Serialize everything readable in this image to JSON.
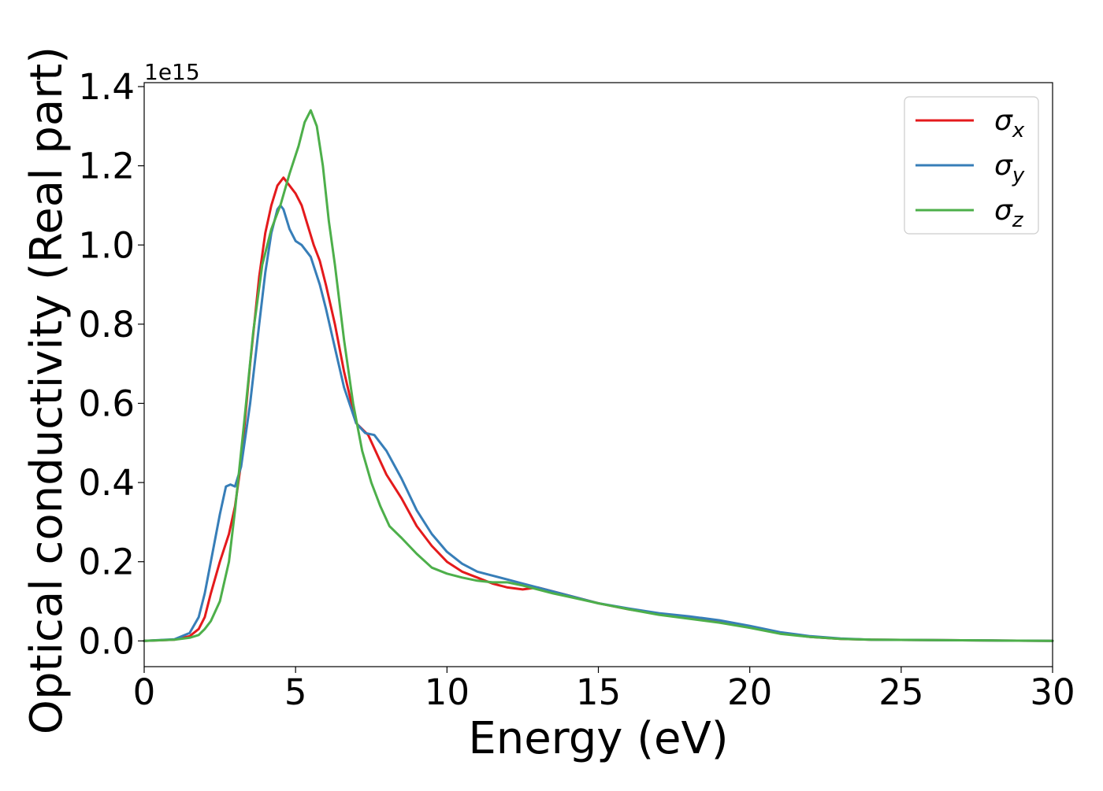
{
  "chart_data": {
    "type": "line",
    "xlabel": "Energy (eV)",
    "ylabel": "Optical conductivity (Real part)",
    "y_offset_label": "1e15",
    "xlim": [
      0,
      30
    ],
    "ylim": [
      -0.065,
      1.41
    ],
    "x_ticks": [
      0,
      5,
      10,
      15,
      20,
      25,
      30
    ],
    "x_tick_labels": [
      "0",
      "5",
      "10",
      "15",
      "20",
      "25",
      "30"
    ],
    "y_ticks": [
      0.0,
      0.2,
      0.4,
      0.6,
      0.8,
      1.0,
      1.2,
      1.4
    ],
    "y_tick_labels": [
      "0.0",
      "0.2",
      "0.4",
      "0.6",
      "0.8",
      "1.0",
      "1.2",
      "1.4"
    ],
    "grid": false,
    "legend_position": "top-right",
    "series": [
      {
        "name": "σ_x",
        "legend_base": "σ",
        "legend_sub": "x",
        "color": "#e41a1c",
        "x": [
          0,
          1,
          1.5,
          1.8,
          2.0,
          2.2,
          2.5,
          2.8,
          3.0,
          3.2,
          3.5,
          3.8,
          4.0,
          4.2,
          4.4,
          4.6,
          4.8,
          5.0,
          5.2,
          5.4,
          5.6,
          5.8,
          6.0,
          6.3,
          6.6,
          7.0,
          7.4,
          7.7,
          8.0,
          8.5,
          9.0,
          9.5,
          10.0,
          10.5,
          11.0,
          11.5,
          12.0,
          12.5,
          13.0,
          13.5,
          14.0,
          15.0,
          16.0,
          17.0,
          18.0,
          19.0,
          20.0,
          21.0,
          22.0,
          23.0,
          24.0,
          26.0,
          28.0,
          30.0
        ],
        "values": [
          0.0,
          0.003,
          0.012,
          0.03,
          0.06,
          0.12,
          0.2,
          0.27,
          0.34,
          0.45,
          0.7,
          0.92,
          1.03,
          1.1,
          1.15,
          1.17,
          1.15,
          1.13,
          1.1,
          1.05,
          1.0,
          0.96,
          0.9,
          0.8,
          0.68,
          0.55,
          0.52,
          0.47,
          0.42,
          0.36,
          0.29,
          0.24,
          0.2,
          0.175,
          0.16,
          0.145,
          0.135,
          0.13,
          0.135,
          0.125,
          0.115,
          0.095,
          0.08,
          0.068,
          0.058,
          0.048,
          0.035,
          0.02,
          0.01,
          0.005,
          0.003,
          0.002,
          0.001,
          0.0
        ]
      },
      {
        "name": "σ_y",
        "legend_base": "σ",
        "legend_sub": "y",
        "color": "#377eb8",
        "x": [
          0,
          1,
          1.5,
          1.8,
          2.0,
          2.2,
          2.5,
          2.7,
          2.85,
          3.0,
          3.2,
          3.5,
          3.8,
          4.0,
          4.2,
          4.4,
          4.5,
          4.6,
          4.8,
          5.0,
          5.2,
          5.5,
          5.8,
          6.0,
          6.3,
          6.6,
          7.0,
          7.3,
          7.6,
          8.0,
          8.5,
          9.0,
          9.5,
          10.0,
          10.5,
          11.0,
          11.5,
          12.0,
          12.5,
          13.0,
          13.5,
          14.0,
          15.0,
          16.0,
          17.0,
          18.0,
          19.0,
          20.0,
          21.0,
          22.0,
          23.0,
          24.0,
          26.0,
          28.0,
          30.0
        ],
        "values": [
          0.0,
          0.004,
          0.02,
          0.06,
          0.12,
          0.2,
          0.32,
          0.39,
          0.395,
          0.39,
          0.44,
          0.6,
          0.8,
          0.93,
          1.03,
          1.09,
          1.1,
          1.09,
          1.04,
          1.01,
          1.0,
          0.97,
          0.9,
          0.84,
          0.74,
          0.64,
          0.55,
          0.525,
          0.52,
          0.48,
          0.41,
          0.33,
          0.27,
          0.225,
          0.195,
          0.175,
          0.165,
          0.155,
          0.145,
          0.135,
          0.125,
          0.115,
          0.095,
          0.082,
          0.07,
          0.062,
          0.052,
          0.038,
          0.022,
          0.012,
          0.006,
          0.003,
          0.002,
          0.001,
          0.0
        ]
      },
      {
        "name": "σ_z",
        "legend_base": "σ",
        "legend_sub": "z",
        "color": "#4daf4a",
        "x": [
          0,
          1,
          1.5,
          1.8,
          2.0,
          2.2,
          2.5,
          2.8,
          3.0,
          3.3,
          3.6,
          3.9,
          4.2,
          4.5,
          4.8,
          5.1,
          5.3,
          5.5,
          5.7,
          5.9,
          6.1,
          6.3,
          6.6,
          6.9,
          7.2,
          7.5,
          7.8,
          8.1,
          8.5,
          9.0,
          9.5,
          10.0,
          10.5,
          11.0,
          11.5,
          12.0,
          12.5,
          13.0,
          13.5,
          14.0,
          15.0,
          16.0,
          17.0,
          18.0,
          19.0,
          20.0,
          21.0,
          22.0,
          23.0,
          24.0,
          26.0,
          28.0,
          30.0
        ],
        "values": [
          0.0,
          0.003,
          0.008,
          0.015,
          0.03,
          0.05,
          0.1,
          0.2,
          0.33,
          0.55,
          0.78,
          0.95,
          1.04,
          1.1,
          1.18,
          1.25,
          1.31,
          1.34,
          1.3,
          1.2,
          1.06,
          0.95,
          0.76,
          0.6,
          0.48,
          0.4,
          0.34,
          0.29,
          0.26,
          0.22,
          0.185,
          0.17,
          0.16,
          0.152,
          0.148,
          0.148,
          0.14,
          0.13,
          0.12,
          0.112,
          0.095,
          0.08,
          0.066,
          0.056,
          0.046,
          0.033,
          0.018,
          0.01,
          0.005,
          0.003,
          0.002,
          0.001,
          0.0
        ]
      }
    ]
  }
}
